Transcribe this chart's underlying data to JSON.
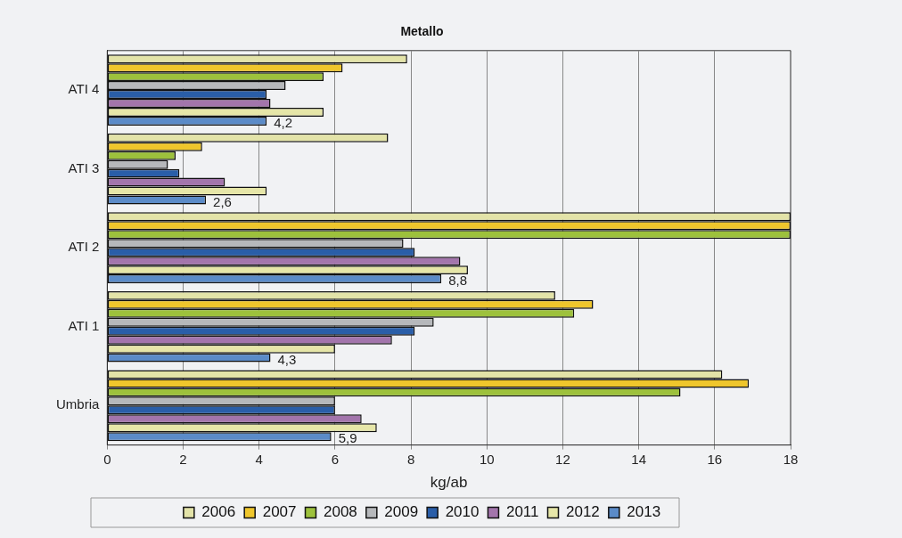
{
  "chart_data": {
    "type": "bar",
    "orientation": "horizontal",
    "title": "Metallo",
    "xlabel": "kg/ab",
    "categories": [
      "ATI 4",
      "ATI 3",
      "ATI 2",
      "ATI 1",
      "Umbria"
    ],
    "xlim": [
      0,
      18
    ],
    "xticks": [
      0,
      2,
      4,
      6,
      8,
      10,
      12,
      14,
      16,
      18
    ],
    "grid": "x",
    "legend": "bottom",
    "series": [
      {
        "name": "2006",
        "color": "#e3e3a8",
        "values": [
          7.9,
          7.4,
          18,
          11.8,
          16.2
        ]
      },
      {
        "name": "2007",
        "color": "#efc62c",
        "values": [
          6.2,
          2.5,
          18,
          12.8,
          16.9
        ]
      },
      {
        "name": "2008",
        "color": "#9dc13c",
        "values": [
          5.7,
          1.8,
          18,
          12.3,
          15.1
        ]
      },
      {
        "name": "2009",
        "color": "#b6b8bb",
        "values": [
          4.7,
          1.6,
          7.8,
          8.6,
          6.0
        ]
      },
      {
        "name": "2010",
        "color": "#2a5ea8",
        "values": [
          4.2,
          1.9,
          8.1,
          8.1,
          6.0
        ]
      },
      {
        "name": "2011",
        "color": "#a375ac",
        "values": [
          4.3,
          3.1,
          9.3,
          7.5,
          6.7
        ]
      },
      {
        "name": "2012",
        "color": "#e6e6a8",
        "values": [
          5.7,
          4.2,
          9.5,
          6.0,
          7.1
        ]
      },
      {
        "name": "2013",
        "color": "#5b8bc8",
        "values": [
          4.2,
          2.6,
          8.8,
          4.3,
          5.9
        ],
        "value_labels": [
          "4,2",
          "2,6",
          "8,8",
          "4,3",
          "5,9"
        ]
      }
    ]
  }
}
